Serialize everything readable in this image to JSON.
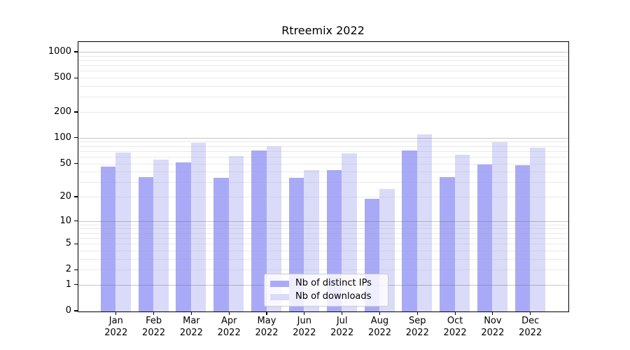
{
  "title": "Rtreemix 2022",
  "legend": {
    "items": [
      {
        "label": "Nb of distinct IPs",
        "color": "#a9aaf7"
      },
      {
        "label": "Nb of downloads",
        "color": "#dadbf9"
      }
    ]
  },
  "chart_data": {
    "type": "bar",
    "title": "Rtreemix 2022",
    "categories": [
      "Jan",
      "Feb",
      "Mar",
      "Apr",
      "May",
      "Jun",
      "Jul",
      "Aug",
      "Sep",
      "Oct",
      "Nov",
      "Dec"
    ],
    "x_year_label": "2022",
    "series": [
      {
        "name": "Nb of distinct IPs",
        "color": "#a9aaf7",
        "values": [
          46,
          35,
          52,
          34,
          72,
          34,
          42,
          19,
          72,
          35,
          49,
          48
        ]
      },
      {
        "name": "Nb of downloads",
        "color": "#dadbf9",
        "values": [
          68,
          56,
          88,
          62,
          81,
          42,
          67,
          25,
          110,
          64,
          90,
          78
        ]
      }
    ],
    "xlabel": "",
    "ylabel": "",
    "yscale": "log1p",
    "ylim": [
      0,
      1300
    ],
    "ytick_labels": [
      0,
      1,
      2,
      5,
      10,
      20,
      50,
      100,
      200,
      500,
      1000
    ],
    "major_gridlines": [
      1,
      10,
      100,
      1000
    ],
    "minor_gridlines": [
      2,
      3,
      4,
      5,
      6,
      7,
      8,
      9,
      20,
      30,
      40,
      50,
      60,
      70,
      80,
      90,
      200,
      300,
      400,
      500,
      600,
      700,
      800,
      900
    ],
    "grid": true,
    "legend_position": "lower center inside"
  }
}
